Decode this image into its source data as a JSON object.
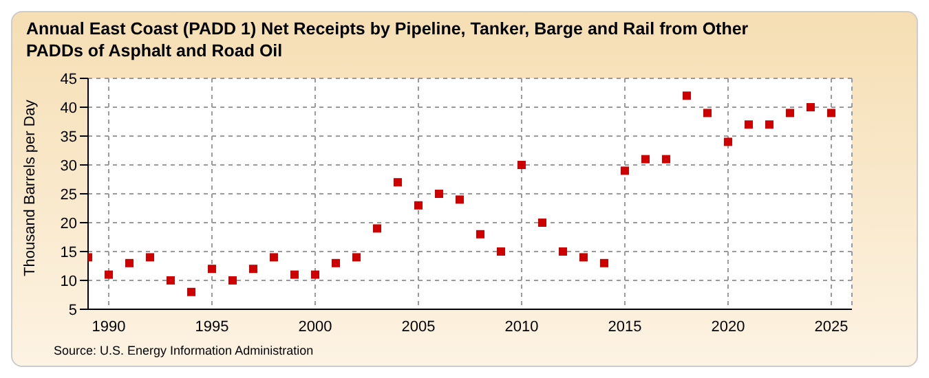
{
  "chart_data": {
    "type": "scatter",
    "title": "Annual East Coast (PADD 1) Net Receipts by Pipeline, Tanker, Barge and Rail from Other PADDs of Asphalt and Road Oil",
    "ylabel": "Thousand Barrels per Day",
    "annotations": [
      "Source: U.S. Energy Information Administration"
    ],
    "x": [
      1989,
      1990,
      1991,
      1992,
      1993,
      1994,
      1995,
      1996,
      1997,
      1998,
      1999,
      2000,
      2001,
      2002,
      2003,
      2004,
      2005,
      2006,
      2007,
      2008,
      2009,
      2010,
      2011,
      2012,
      2013,
      2014,
      2015,
      2016,
      2017,
      2018,
      2019,
      2020,
      2021,
      2022,
      2023,
      2024,
      2025
    ],
    "series": [
      {
        "color": "#cc0000",
        "values": [
          14,
          11,
          13,
          14,
          10,
          8,
          12,
          10,
          12,
          14,
          11,
          11,
          13,
          14,
          19,
          27,
          23,
          25,
          24,
          18,
          15,
          30,
          20,
          15,
          14,
          13,
          29,
          31,
          31,
          42,
          39,
          34,
          37,
          37,
          39,
          40,
          39
        ]
      }
    ],
    "xlim": [
      1989,
      2026
    ],
    "xticks": [
      1990,
      1995,
      2000,
      2005,
      2010,
      2015,
      2020,
      2025
    ],
    "ylim": [
      5,
      45
    ],
    "yticks": [
      5,
      10,
      15,
      20,
      25,
      30,
      35,
      40,
      45
    ],
    "grid": true,
    "marker": "square",
    "legend": false
  }
}
